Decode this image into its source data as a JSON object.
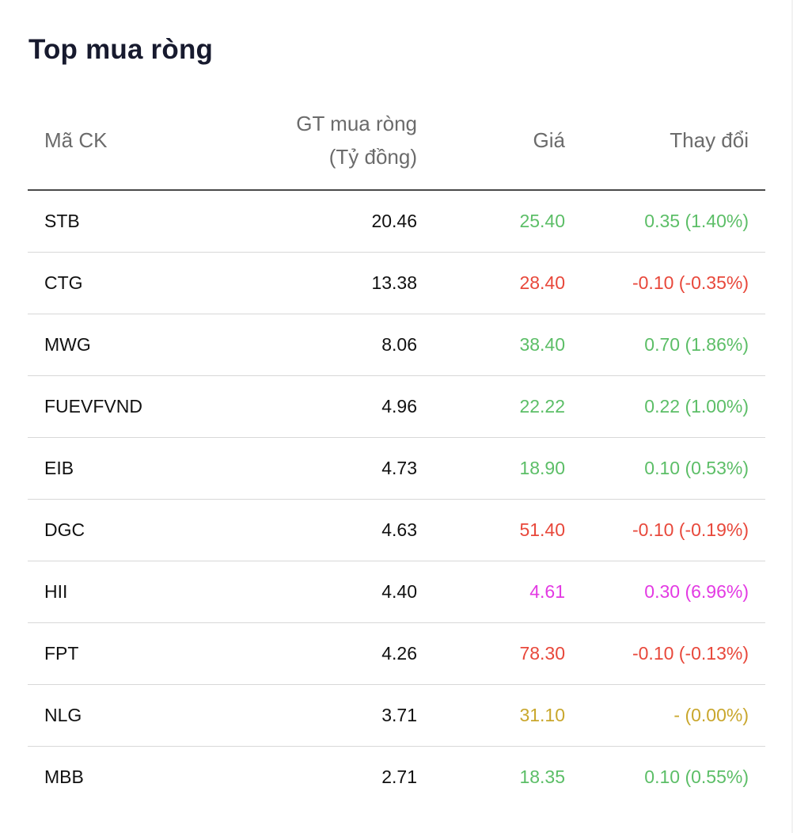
{
  "title": "Top mua ròng",
  "headers": {
    "code": "Mã CK",
    "value_line1": "GT mua ròng",
    "value_line2": "(Tỷ đồng)",
    "price": "Giá",
    "change": "Thay đổi"
  },
  "colors": {
    "up": "#5cbe67",
    "down": "#e8483b",
    "ceiling": "#e33ae3",
    "reference": "#c9a72d"
  },
  "rows": [
    {
      "code": "STB",
      "value": "20.46",
      "price": "25.40",
      "change": "0.35 (1.40%)",
      "status": "up"
    },
    {
      "code": "CTG",
      "value": "13.38",
      "price": "28.40",
      "change": "-0.10 (-0.35%)",
      "status": "down"
    },
    {
      "code": "MWG",
      "value": "8.06",
      "price": "38.40",
      "change": "0.70 (1.86%)",
      "status": "up"
    },
    {
      "code": "FUEVFVND",
      "value": "4.96",
      "price": "22.22",
      "change": "0.22 (1.00%)",
      "status": "up"
    },
    {
      "code": "EIB",
      "value": "4.73",
      "price": "18.90",
      "change": "0.10 (0.53%)",
      "status": "up"
    },
    {
      "code": "DGC",
      "value": "4.63",
      "price": "51.40",
      "change": "-0.10 (-0.19%)",
      "status": "down"
    },
    {
      "code": "HII",
      "value": "4.40",
      "price": "4.61",
      "change": "0.30 (6.96%)",
      "status": "ceil"
    },
    {
      "code": "FPT",
      "value": "4.26",
      "price": "78.30",
      "change": "-0.10 (-0.13%)",
      "status": "down"
    },
    {
      "code": "NLG",
      "value": "3.71",
      "price": "31.10",
      "change": "- (0.00%)",
      "status": "ref"
    },
    {
      "code": "MBB",
      "value": "2.71",
      "price": "18.35",
      "change": "0.10 (0.55%)",
      "status": "up"
    }
  ]
}
